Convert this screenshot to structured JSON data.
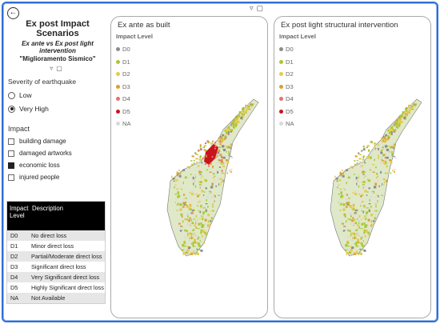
{
  "header": {
    "back_icon": "back-arrow-icon",
    "tool_icons": [
      "filter-icon",
      "expand-icon"
    ]
  },
  "left": {
    "title": "Ex post Impact Scenarios",
    "subtitle": "Ex ante vs Ex post light intervention",
    "subtitle2": "\"Miglioramento Sismico\"",
    "severity": {
      "label": "Severity of earthquake",
      "options": [
        {
          "label": "Low",
          "selected": false
        },
        {
          "label": "Very High",
          "selected": true
        }
      ]
    },
    "impact": {
      "label": "Impact",
      "options": [
        {
          "label": "building damage",
          "checked": false
        },
        {
          "label": "damaged artworks",
          "checked": false
        },
        {
          "label": "economic loss",
          "checked": true
        },
        {
          "label": "injured people",
          "checked": false
        }
      ]
    },
    "legend_table": {
      "col1": "Impact Level",
      "col2": "Description",
      "rows": [
        {
          "level": "D0",
          "desc": "No direct loss"
        },
        {
          "level": "D1",
          "desc": "Minor direct loss"
        },
        {
          "level": "D2",
          "desc": "Partial/Moderate direct loss"
        },
        {
          "level": "D3",
          "desc": "Significant direct loss"
        },
        {
          "level": "D4",
          "desc": "Very Significant direct loss"
        },
        {
          "level": "D5",
          "desc": "Highly Significant direct loss"
        },
        {
          "level": "NA",
          "desc": "Not Available"
        }
      ]
    }
  },
  "maps": [
    {
      "title": "Ex ante as built",
      "legend_title": "Impact Level",
      "levels": [
        {
          "label": "D0",
          "color": "#8c8c8c"
        },
        {
          "label": "D1",
          "color": "#a9c934"
        },
        {
          "label": "D2",
          "color": "#e9c94d"
        },
        {
          "label": "D3",
          "color": "#e39a3a"
        },
        {
          "label": "D4",
          "color": "#e2736e"
        },
        {
          "label": "D5",
          "color": "#c9141c"
        },
        {
          "label": "NA",
          "color": "#d9d9d9"
        }
      ]
    },
    {
      "title": "Ex post light structural intervention",
      "legend_title": "Impact Level",
      "levels": [
        {
          "label": "D0",
          "color": "#8c8c8c"
        },
        {
          "label": "D1",
          "color": "#a9c934"
        },
        {
          "label": "D2",
          "color": "#e9c94d"
        },
        {
          "label": "D3",
          "color": "#e39a3a"
        },
        {
          "label": "D4",
          "color": "#e2736e"
        },
        {
          "label": "D5",
          "color": "#c9141c"
        },
        {
          "label": "NA",
          "color": "#d9d9d9"
        }
      ]
    }
  ]
}
